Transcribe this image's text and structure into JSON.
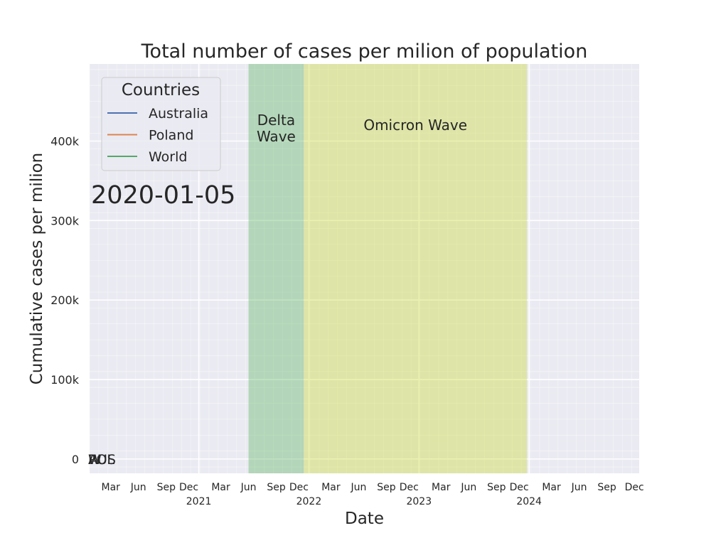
{
  "chart_data": {
    "type": "line",
    "title": "Total number of cases per milion of population",
    "xlabel": "Date",
    "ylabel": "Cumulative cases per milion",
    "xlim": [
      "2020-01-05",
      "2024-12-31"
    ],
    "ylim": [
      -18000,
      497000
    ],
    "y_ticks": [
      {
        "value": 0,
        "label": "0"
      },
      {
        "value": 100000,
        "label": "100k"
      },
      {
        "value": 200000,
        "label": "200k"
      },
      {
        "value": 300000,
        "label": "300k"
      },
      {
        "value": 400000,
        "label": "400k"
      }
    ],
    "x_ticks_major": [
      {
        "date": "2021-01-01",
        "label": "Dec"
      },
      {
        "date": "2022-01-01",
        "label": "Dec"
      },
      {
        "date": "2023-01-01",
        "label": "Dec"
      },
      {
        "date": "2024-01-01",
        "label": "Dec"
      }
    ],
    "x_ticks_minor": [
      {
        "date": "2020-03-15",
        "label": "Mar"
      },
      {
        "date": "2020-06-15",
        "label": "Jun"
      },
      {
        "date": "2020-09-15",
        "label": "Sep"
      },
      {
        "date": "2021-03-15",
        "label": "Mar"
      },
      {
        "date": "2021-06-15",
        "label": "Jun"
      },
      {
        "date": "2021-09-15",
        "label": "Sep"
      },
      {
        "date": "2022-03-15",
        "label": "Mar"
      },
      {
        "date": "2022-06-15",
        "label": "Jun"
      },
      {
        "date": "2022-09-15",
        "label": "Sep"
      },
      {
        "date": "2023-03-15",
        "label": "Mar"
      },
      {
        "date": "2023-06-15",
        "label": "Jun"
      },
      {
        "date": "2023-09-15",
        "label": "Sep"
      },
      {
        "date": "2024-03-15",
        "label": "Mar"
      },
      {
        "date": "2024-06-15",
        "label": "Jun"
      },
      {
        "date": "2024-09-15",
        "label": "Sep"
      },
      {
        "date": "2024-12-15",
        "label": "Dec"
      }
    ],
    "year_labels": [
      {
        "date": "2021-01-01",
        "label": "2021"
      },
      {
        "date": "2022-01-01",
        "label": "2022"
      },
      {
        "date": "2023-01-01",
        "label": "2023"
      },
      {
        "date": "2024-01-01",
        "label": "2024"
      }
    ],
    "regions": [
      {
        "name": "Delta Wave",
        "label_lines": [
          "Delta",
          "Wave"
        ],
        "start": "2021-06-15",
        "end": "2021-12-15",
        "color": "#4CAF50",
        "opacity": 0.35
      },
      {
        "name": "Omicron Wave",
        "label_lines": [
          "Omicron Wave"
        ],
        "start": "2021-12-15",
        "end": "2023-12-25",
        "color": "#CDDC39",
        "opacity": 0.4
      }
    ],
    "legend": {
      "title": "Countries",
      "position": "top-left",
      "entries": [
        {
          "name": "Australia",
          "color": "#4C72B0"
        },
        {
          "name": "Poland",
          "color": "#DD8452"
        },
        {
          "name": "World",
          "color": "#55A868"
        }
      ]
    },
    "date_stamp": "2020-01-05",
    "series": [
      {
        "name": "Australia",
        "color": "#4C72B0",
        "points": [
          {
            "date": "2020-01-05",
            "value": 0
          }
        ]
      },
      {
        "name": "Poland",
        "color": "#DD8452",
        "points": [
          {
            "date": "2020-01-05",
            "value": 0
          }
        ]
      },
      {
        "name": "World",
        "color": "#55A868",
        "points": [
          {
            "date": "2020-01-05",
            "value": 0
          }
        ]
      }
    ],
    "end_labels": [
      {
        "text": "AUS",
        "value": 0
      },
      {
        "text": "POL",
        "value": 0
      },
      {
        "text": "W",
        "value": 0
      }
    ],
    "grid": true,
    "colors": {
      "background": "#EAEAF2",
      "grid_major": "#FFFFFF"
    }
  }
}
